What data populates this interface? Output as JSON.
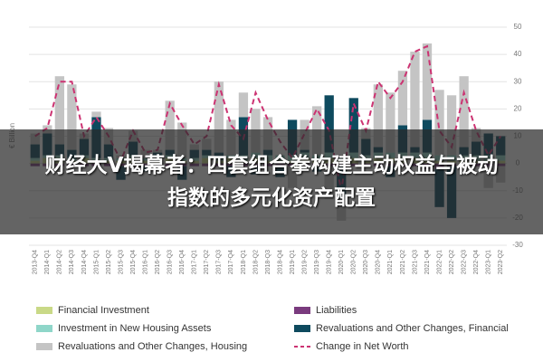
{
  "chart_data": {
    "type": "bar",
    "y_label": "€ Billion",
    "categories": [
      "2013-Q4",
      "2014-Q1",
      "2014-Q2",
      "2014-Q3",
      "2014-Q4",
      "2015-Q1",
      "2015-Q2",
      "2015-Q3",
      "2015-Q4",
      "2016-Q1",
      "2016-Q2",
      "2016-Q3",
      "2016-Q4",
      "2017-Q1",
      "2017-Q2",
      "2017-Q3",
      "2017-Q4",
      "2018-Q1",
      "2018-Q2",
      "2018-Q3",
      "2018-Q4",
      "2019-Q1",
      "2019-Q2",
      "2019-Q3",
      "2019-Q4",
      "2020-Q1",
      "2020-Q2",
      "2020-Q3",
      "2020-Q4",
      "2021-Q1",
      "2021-Q2",
      "2021-Q3",
      "2021-Q4",
      "2022-Q1",
      "2022-Q2",
      "2022-Q3",
      "2022-Q4",
      "2023-Q1",
      "2023-Q2"
    ],
    "series": [
      {
        "name": "Financial Investment",
        "color": "#c9d987",
        "kind": "bar",
        "values": [
          1,
          2,
          2,
          1,
          2,
          1,
          1,
          1,
          2,
          1,
          1,
          2,
          1,
          1,
          2,
          1,
          2,
          1,
          2,
          1,
          1,
          1,
          2,
          1,
          2,
          1,
          2,
          1,
          2,
          2,
          2,
          2,
          2,
          1,
          1,
          1,
          1,
          1,
          1
        ]
      },
      {
        "name": "Liabilities",
        "color": "#7a3b7e",
        "kind": "bar",
        "values": [
          -1,
          -1,
          -1,
          -1,
          -1,
          -1,
          -1,
          -1,
          -1,
          -1,
          -1,
          -1,
          -1,
          -1,
          -1,
          -1,
          -1,
          -1,
          -1,
          -1,
          -1,
          -1,
          -1,
          -1,
          -1,
          -1,
          -1,
          -1,
          -1,
          -1,
          -1,
          -1,
          -2,
          -2,
          -1,
          -1,
          -1,
          -1,
          -1
        ]
      },
      {
        "name": "Investment in New Housing Assets",
        "color": "#8fd6c9",
        "kind": "bar",
        "values": [
          1,
          1,
          1,
          1,
          1,
          1,
          1,
          1,
          1,
          1,
          1,
          1,
          1,
          1,
          1,
          1,
          1,
          2,
          2,
          2,
          2,
          2,
          2,
          2,
          2,
          1,
          2,
          2,
          2,
          2,
          2,
          2,
          2,
          2,
          2,
          2,
          2,
          2,
          2
        ]
      },
      {
        "name": "Revaluations and Other Changes, Financial",
        "color": "#0e4a5e",
        "kind": "bar",
        "values": [
          5,
          8,
          4,
          3,
          6,
          15,
          5,
          -5,
          5,
          -2,
          2,
          2,
          -5,
          3,
          2,
          2,
          -4,
          14,
          -3,
          2,
          -4,
          13,
          1,
          -2,
          21,
          -12,
          20,
          6,
          2,
          -4,
          10,
          2,
          12,
          -14,
          -19,
          3,
          5,
          8,
          7
        ]
      },
      {
        "name": "Revaluations and Other Changes, Housing",
        "color": "#c4c4c4",
        "kind": "bar",
        "values": [
          4,
          3,
          25,
          24,
          2,
          2,
          6,
          1,
          4,
          3,
          1,
          18,
          13,
          2,
          4,
          26,
          13,
          9,
          16,
          12,
          0,
          -8,
          11,
          18,
          -12,
          -8,
          0,
          4,
          23,
          22,
          20,
          35,
          28,
          24,
          22,
          26,
          5,
          -8,
          -6
        ]
      },
      {
        "name": "Change in Net Worth",
        "color": "#cc3372",
        "kind": "line",
        "dashed": true,
        "values": [
          10,
          13,
          30,
          30,
          10,
          17,
          10,
          1,
          12,
          4,
          5,
          22,
          14,
          7,
          10,
          29,
          14,
          9,
          26,
          16,
          8,
          2,
          11,
          20,
          12,
          -10,
          22,
          12,
          30,
          24,
          30,
          41,
          43,
          12,
          6,
          26,
          12,
          3,
          10
        ]
      }
    ],
    "ylim": [
      -30,
      50
    ],
    "yticks": [
      -30,
      -20,
      -10,
      0,
      10,
      20,
      30,
      40,
      50
    ],
    "grid": true
  },
  "overlay": {
    "lines": [
      "财经大V揭幕者：四套组合拳构建主动权益与被动",
      "指数的多元化资产配置"
    ]
  }
}
